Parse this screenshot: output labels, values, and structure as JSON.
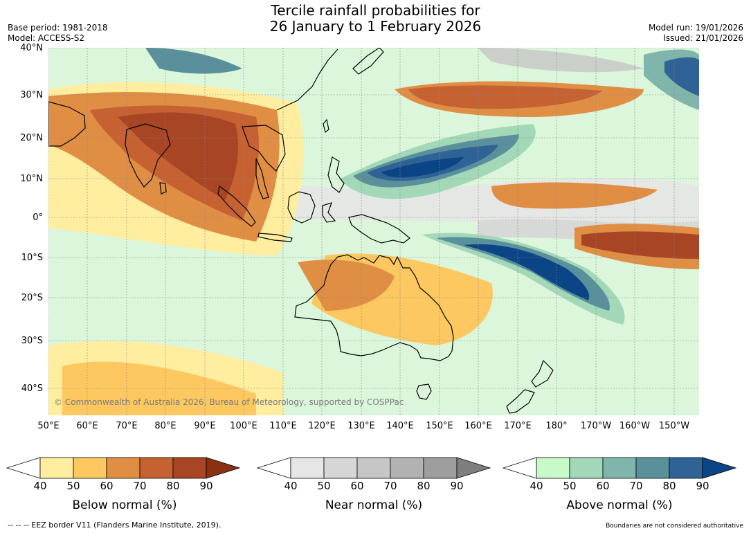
{
  "header": {
    "title_line1": "Tercile rainfall probabilities for",
    "title_line2": "26 January to 1 February 2026",
    "base_period": "Base period: 1981-2018",
    "model": "Model: ACCESS-S2",
    "model_run": "Model run: 19/01/2026",
    "issued": "Issued: 21/01/2026"
  },
  "map": {
    "copyright": "© Commonwealth of Australia 2026, Bureau of Meteorology, supported by COSPPac",
    "lat_labels": [
      "40°N",
      "30°N",
      "20°N",
      "10°N",
      "0°",
      "10°S",
      "20°S",
      "30°S",
      "40°S"
    ],
    "lon_labels": [
      "50°E",
      "60°E",
      "70°E",
      "80°E",
      "90°E",
      "100°E",
      "110°E",
      "120°E",
      "130°E",
      "140°E",
      "150°E",
      "160°E",
      "170°E",
      "180°",
      "170°W",
      "160°W",
      "150°W"
    ]
  },
  "legend": {
    "below": {
      "label": "Below normal (%)",
      "ticks": [
        "40",
        "50",
        "60",
        "70",
        "80",
        "90"
      ],
      "colors": [
        "#ffffff",
        "#ffeea0",
        "#fdc860",
        "#df8e44",
        "#c66232",
        "#a84524",
        "#8c3013"
      ]
    },
    "near": {
      "label": "Near normal (%)",
      "ticks": [
        "40",
        "50",
        "60",
        "70",
        "80",
        "90"
      ],
      "colors": [
        "#ffffff",
        "#e6e6e6",
        "#d6d6d6",
        "#c6c6c6",
        "#b2b2b2",
        "#9e9e9e",
        "#7e7e7e"
      ]
    },
    "above": {
      "label": "Above normal (%)",
      "ticks": [
        "40",
        "50",
        "60",
        "70",
        "80",
        "90"
      ],
      "colors": [
        "#ffffff",
        "#c8f9c8",
        "#a2d7b8",
        "#7fb5ab",
        "#5a8f9c",
        "#2f6396",
        "#0c4585"
      ]
    }
  },
  "footer": {
    "eez": "--  --  -- EEZ border V11 (Flanders Marine Institute, 2019).",
    "disclaimer": "Boundaries are not considered authoritative"
  }
}
